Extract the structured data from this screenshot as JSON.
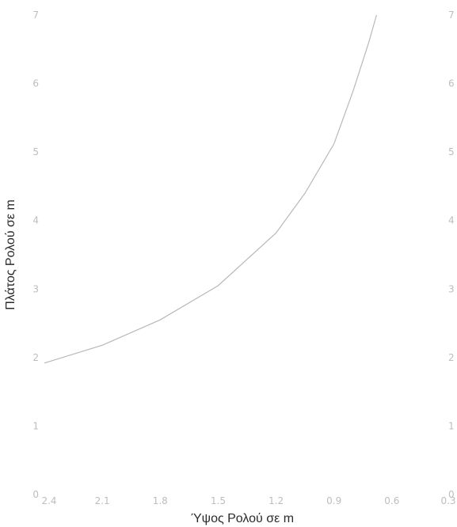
{
  "chart_data": {
    "type": "line",
    "xlabel": "Ύψος Ρολού σε m",
    "ylabel": "Πλάτος Ρολού σε m",
    "xlim": [
      2.4,
      0.3
    ],
    "ylim": [
      0,
      7
    ],
    "x_reversed": true,
    "x_ticks": [
      "2.4",
      "2.1",
      "1.8",
      "1.5",
      "1.2",
      "0.9",
      "0.6",
      "0.3"
    ],
    "y_ticks": [
      "0",
      "1",
      "2",
      "3",
      "4",
      "5",
      "6",
      "7"
    ],
    "right_y_ticks": [
      "0",
      "1",
      "2",
      "3",
      "4",
      "5",
      "6",
      "7"
    ],
    "grid": false,
    "line_color": "#b8b8b8",
    "series": [
      {
        "x": [
          2.4,
          2.1,
          1.8,
          1.5,
          1.2,
          1.05,
          0.9,
          0.8,
          0.72,
          0.68
        ],
        "y": [
          1.92,
          2.18,
          2.55,
          3.05,
          3.82,
          4.4,
          5.12,
          5.9,
          6.6,
          7.0
        ]
      }
    ]
  }
}
